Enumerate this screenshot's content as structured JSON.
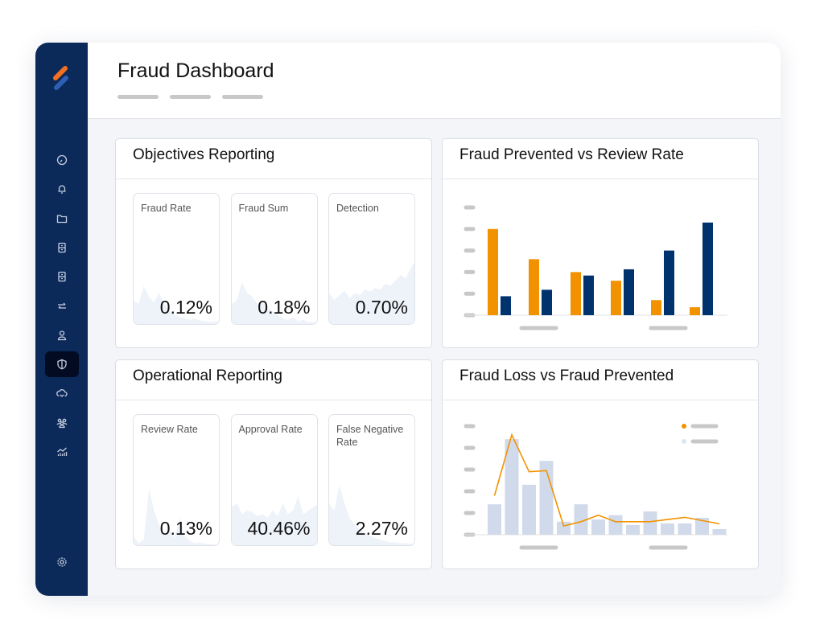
{
  "header": {
    "title": "Fraud Dashboard",
    "breadcrumb_count": 3
  },
  "sidebar": {
    "items": [
      {
        "icon": "dashboard-gauge-icon"
      },
      {
        "icon": "bell-icon"
      },
      {
        "icon": "folder-icon"
      },
      {
        "icon": "archive-cabinet-icon"
      },
      {
        "icon": "archive-cabinet-icon"
      },
      {
        "icon": "transfer-arrows-icon"
      },
      {
        "icon": "user-icon"
      },
      {
        "icon": "shield-icon",
        "active": true
      },
      {
        "icon": "cloud-icon"
      },
      {
        "icon": "users-group-icon"
      },
      {
        "icon": "analytics-chart-icon"
      }
    ],
    "settings_icon": "gear-icon"
  },
  "objectives": {
    "title": "Objectives Reporting",
    "tiles": [
      {
        "label": "Fraud Rate",
        "value": "0.12%",
        "trend": [
          0.35,
          0.3,
          0.55,
          0.4,
          0.32,
          0.45,
          0.3,
          0.2,
          0.15,
          0.12,
          0.1,
          0.08,
          0.1,
          0.07,
          0.06,
          0.05,
          0.06,
          0.04
        ]
      },
      {
        "label": "Fraud Sum",
        "value": "0.18%",
        "trend": [
          0.3,
          0.35,
          0.6,
          0.45,
          0.4,
          0.3,
          0.35,
          0.25,
          0.2,
          0.15,
          0.1,
          0.08,
          0.12,
          0.06,
          0.08,
          0.05,
          0.05,
          0.05
        ]
      },
      {
        "label": "Detection",
        "value": "0.70%",
        "trend": [
          0.45,
          0.35,
          0.42,
          0.48,
          0.38,
          0.45,
          0.42,
          0.5,
          0.47,
          0.52,
          0.5,
          0.58,
          0.55,
          0.62,
          0.7,
          0.65,
          0.8,
          0.9
        ]
      }
    ]
  },
  "operational": {
    "title": "Operational Reporting",
    "tiles": [
      {
        "label": "Review Rate",
        "value": "0.13%",
        "trend": [
          0.15,
          0.05,
          0.1,
          0.8,
          0.5,
          0.3,
          0.15,
          0.25,
          0.12,
          0.4,
          0.15,
          0.08,
          0.05,
          0.06,
          0.04,
          0.04,
          0.03,
          0.03
        ]
      },
      {
        "label": "Approval Rate",
        "value": "40.46%",
        "trend": [
          0.55,
          0.6,
          0.45,
          0.5,
          0.48,
          0.42,
          0.45,
          0.4,
          0.5,
          0.42,
          0.6,
          0.45,
          0.5,
          0.7,
          0.45,
          0.5,
          0.55,
          0.6
        ]
      },
      {
        "label": "False Negative Rate",
        "value": "2.27%",
        "trend": [
          0.6,
          0.5,
          0.85,
          0.6,
          0.4,
          0.3,
          0.25,
          0.2,
          0.15,
          0.12,
          0.1,
          0.08,
          0.06,
          0.06,
          0.05,
          0.05,
          0.04,
          0.04
        ]
      }
    ]
  },
  "chart_data": [
    {
      "title": "Fraud Prevented vs Review Rate",
      "type": "bar",
      "ylim": [
        0,
        5
      ],
      "grid": false,
      "series": [
        {
          "color": "#f39200",
          "values": [
            4.0,
            2.6,
            2.0,
            1.6,
            0.7,
            0.37
          ]
        },
        {
          "color": "#00336e",
          "values": [
            0.88,
            1.18,
            1.84,
            2.13,
            3.0,
            4.3
          ]
        }
      ]
    },
    {
      "title": "Fraud Loss vs Fraud Prevented",
      "type": "bar+line",
      "ylim": [
        0,
        5
      ],
      "grid": false,
      "legend": "top-right",
      "bars": {
        "color": "#d1daea",
        "values": [
          1.4,
          4.4,
          2.3,
          3.4,
          0.6,
          1.4,
          0.7,
          0.9,
          0.45,
          1.07,
          0.52,
          0.52,
          0.78,
          0.26
        ]
      },
      "line": {
        "color": "#f39200",
        "values": [
          1.8,
          4.6,
          2.9,
          2.95,
          0.4,
          0.6,
          0.9,
          0.6,
          0.6,
          0.6,
          0.7,
          0.8,
          0.65,
          0.5
        ]
      }
    }
  ],
  "colors": {
    "sidebar": "#0c2a59",
    "accent": "#f39200",
    "navy": "#00336e"
  }
}
